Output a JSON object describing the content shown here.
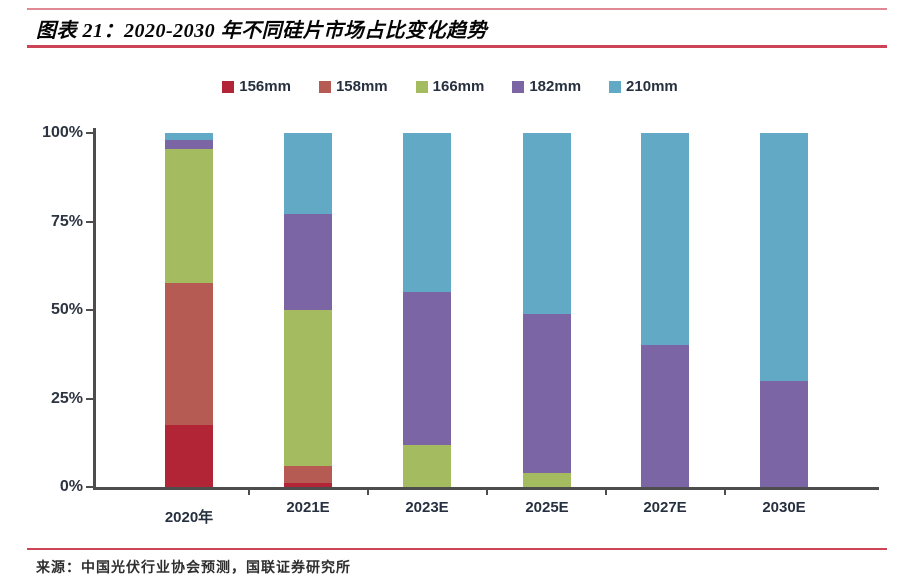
{
  "header": {
    "title": "图表 21：2020-2030 年不同硅片市场占比变化趋势"
  },
  "footer": {
    "source": "来源：中国光伏行业协会预测，国联证券研究所"
  },
  "colors": {
    "accent_rule": "#cc4455",
    "top_rule": "#e08894",
    "axis": "#4d4d4d",
    "label_text": "#26303f"
  },
  "chart_data": {
    "type": "bar",
    "stacked": true,
    "title": "2020-2030 年不同硅片市场占比变化趋势",
    "categories": [
      "2020年",
      "2021E",
      "2023E",
      "2025E",
      "2027E",
      "2030E"
    ],
    "series": [
      {
        "name": "156mm",
        "color": "#b12536",
        "values": [
          17.5,
          1,
          0,
          0,
          0,
          0
        ]
      },
      {
        "name": "158mm",
        "color": "#b65b53",
        "values": [
          40,
          5,
          0,
          0,
          0,
          0
        ]
      },
      {
        "name": "166mm",
        "color": "#a4bb60",
        "values": [
          38,
          44,
          12,
          4,
          0,
          0
        ]
      },
      {
        "name": "182mm",
        "color": "#7b65a5",
        "values": [
          2.5,
          27,
          43,
          45,
          40,
          30
        ]
      },
      {
        "name": "210mm",
        "color": "#62a9c5",
        "values": [
          2,
          23,
          45,
          51,
          60,
          70
        ]
      }
    ],
    "ylabel": "",
    "xlabel": "",
    "ylim": [
      0,
      100
    ],
    "yticks": [
      "0%",
      "25%",
      "50%",
      "75%",
      "100%"
    ],
    "grid": false,
    "legend_position": "top"
  }
}
